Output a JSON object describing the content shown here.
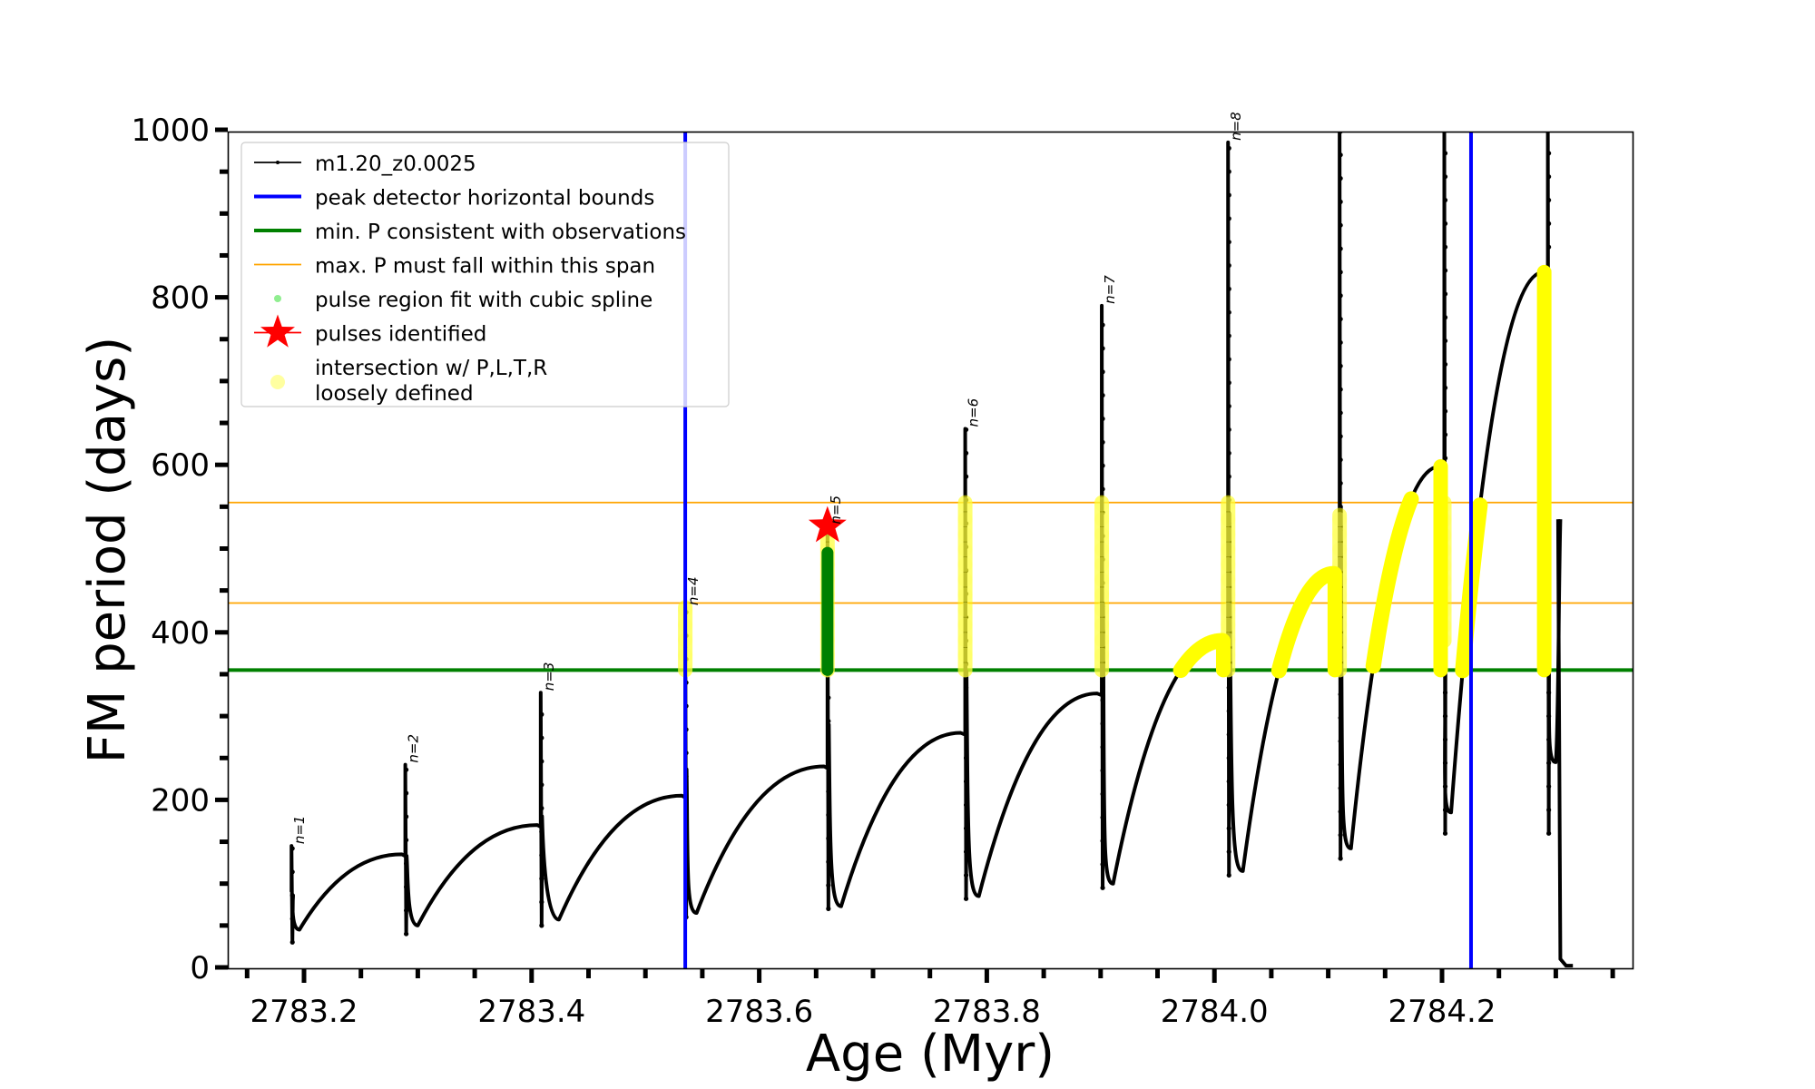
{
  "chart_data": {
    "type": "line",
    "title": "",
    "xlabel": "Age (Myr)",
    "ylabel": "FM period (days)",
    "xlim": [
      2783.133,
      2784.369
    ],
    "ylim": [
      0,
      1000
    ],
    "grid": false,
    "x_ticks": [
      2783.2,
      2783.4,
      2783.6,
      2783.8,
      2784.0,
      2784.2
    ],
    "x_tick_labels": [
      "2783.2",
      "2783.4",
      "2783.6",
      "2783.8",
      "2784.0",
      "2784.2"
    ],
    "x_minor_step": 0.05,
    "y_ticks": [
      0,
      200,
      400,
      600,
      800,
      1000
    ],
    "y_tick_labels": [
      "0",
      "200",
      "400",
      "600",
      "800",
      "1000"
    ],
    "y_minor_step": 50,
    "legend_position": "upper-left",
    "legend": [
      {
        "label": "m1.20_z0.0025",
        "marker": "line-dot",
        "color": "#000000"
      },
      {
        "label": "peak detector horizontal bounds",
        "marker": "thick-line",
        "color": "#0000ff"
      },
      {
        "label": "min. P consistent with observations",
        "marker": "thick-line",
        "color": "#008000"
      },
      {
        "label": "max. P must fall within this span",
        "marker": "thin-line",
        "color": "#ffa500"
      },
      {
        "label": "pulse region fit with cubic spline",
        "marker": "dot",
        "color": "#90ee90"
      },
      {
        "label": "pulses identified",
        "marker": "star",
        "color": "#ff0000"
      },
      {
        "label": "intersection w/ P,L,T,R",
        "label2": "loosely defined",
        "marker": "circle",
        "color": "#ffffa0"
      }
    ],
    "vertical_lines": [
      {
        "name": "peak detector horizontal bounds",
        "x": 2783.535,
        "color": "#0000ff"
      },
      {
        "name": "peak detector horizontal bounds",
        "x": 2784.2255,
        "color": "#0000ff"
      }
    ],
    "horizontal_lines": [
      {
        "name": "min. P consistent with observations",
        "y": 355,
        "color": "#008000"
      },
      {
        "name": "max. P span lower",
        "y": 435,
        "color": "#ffa500"
      },
      {
        "name": "max. P span upper",
        "y": 555,
        "color": "#ffa500"
      }
    ],
    "series": [
      {
        "name": "m1.20_z0.0025",
        "color": "#000000",
        "cycles": [
          {
            "label": "n=1",
            "pulse_x": 2783.189,
            "start_P": 30,
            "spike_P": 145,
            "min_x": 2783.196,
            "min_P": 45,
            "end_x": 2783.286,
            "end_P": 135
          },
          {
            "label": "n=2",
            "pulse_x": 2783.289,
            "start_P": 40,
            "spike_P": 242,
            "min_x": 2783.3,
            "min_P": 50,
            "end_x": 2783.405,
            "end_P": 170
          },
          {
            "label": "n=3",
            "pulse_x": 2783.408,
            "start_P": 50,
            "spike_P": 328,
            "min_x": 2783.424,
            "min_P": 57,
            "end_x": 2783.532,
            "end_P": 205
          },
          {
            "label": "n=4",
            "pulse_x": 2783.535,
            "start_P": 60,
            "spike_P": 430,
            "min_x": 2783.545,
            "min_P": 65,
            "end_x": 2783.657,
            "end_P": 240
          },
          {
            "label": "n=5",
            "pulse_x": 2783.66,
            "start_P": 70,
            "spike_P": 527,
            "min_x": 2783.672,
            "min_P": 73,
            "end_x": 2783.777,
            "end_P": 280
          },
          {
            "label": "n=6",
            "pulse_x": 2783.781,
            "start_P": 82,
            "spike_P": 643,
            "min_x": 2783.793,
            "min_P": 85,
            "end_x": 2783.897,
            "end_P": 327
          },
          {
            "label": "n=7",
            "pulse_x": 2783.901,
            "start_P": 95,
            "spike_P": 790,
            "min_x": 2783.911,
            "min_P": 100,
            "end_x": 2784.007,
            "end_P": 390
          },
          {
            "label": "n=8",
            "pulse_x": 2784.012,
            "start_P": 110,
            "spike_P": 985,
            "min_x": 2784.025,
            "min_P": 115,
            "end_x": 2784.105,
            "end_P": 470
          },
          {
            "label": "",
            "pulse_x": 2784.11,
            "start_P": 130,
            "spike_P": 1000,
            "min_x": 2784.12,
            "min_P": 142,
            "end_x": 2784.198,
            "end_P": 598
          },
          {
            "label": "",
            "pulse_x": 2784.202,
            "start_P": 160,
            "spike_P": 1000,
            "min_x": 2784.208,
            "min_P": 185,
            "end_x": 2784.289,
            "end_P": 830
          },
          {
            "label": "",
            "pulse_x": 2784.293,
            "start_P": 160,
            "spike_P": 1000,
            "min_x": 2784.3,
            "min_P": 245,
            "end_x": 2784.304,
            "end_P": 535
          }
        ],
        "tail": {
          "x": [
            2784.302,
            2784.304,
            2784.309,
            2784.315
          ],
          "P": [
            535,
            10,
            2,
            2
          ]
        }
      }
    ],
    "pulses_identified": [
      {
        "label": "n=5",
        "x": 2783.66,
        "P": 527,
        "color": "#ff0000"
      }
    ],
    "spline_fit_region": {
      "x": 2783.66,
      "P_range": [
        355,
        495
      ],
      "color": "#008000"
    },
    "loose_intersections": [
      {
        "x": 2783.535,
        "P_range": [
          355,
          430
        ],
        "kind": "vertical"
      },
      {
        "x": 2783.66,
        "P_range": [
          355,
          527
        ],
        "kind": "vertical"
      },
      {
        "x": 2783.781,
        "P_range": [
          355,
          555
        ],
        "kind": "vertical"
      },
      {
        "x": 2783.901,
        "P_range": [
          355,
          555
        ],
        "kind": "vertical"
      },
      {
        "x": 2784.012,
        "P_range": [
          355,
          555
        ],
        "kind": "vertical"
      },
      {
        "x": 2784.11,
        "P_range": [
          355,
          540
        ],
        "kind": "vertical"
      },
      {
        "x": 2784.202,
        "P_range": [
          390,
          555
        ],
        "kind": "vertical"
      },
      {
        "x_range": [
          2783.965,
          2784.007
        ],
        "kind": "curve"
      },
      {
        "x_range": [
          2784.045,
          2784.105
        ],
        "kind": "curve"
      },
      {
        "x_range": [
          2784.128,
          2784.18
        ],
        "kind": "curve"
      },
      {
        "x_range": [
          2784.217,
          2784.228
        ],
        "kind": "curve"
      }
    ]
  }
}
